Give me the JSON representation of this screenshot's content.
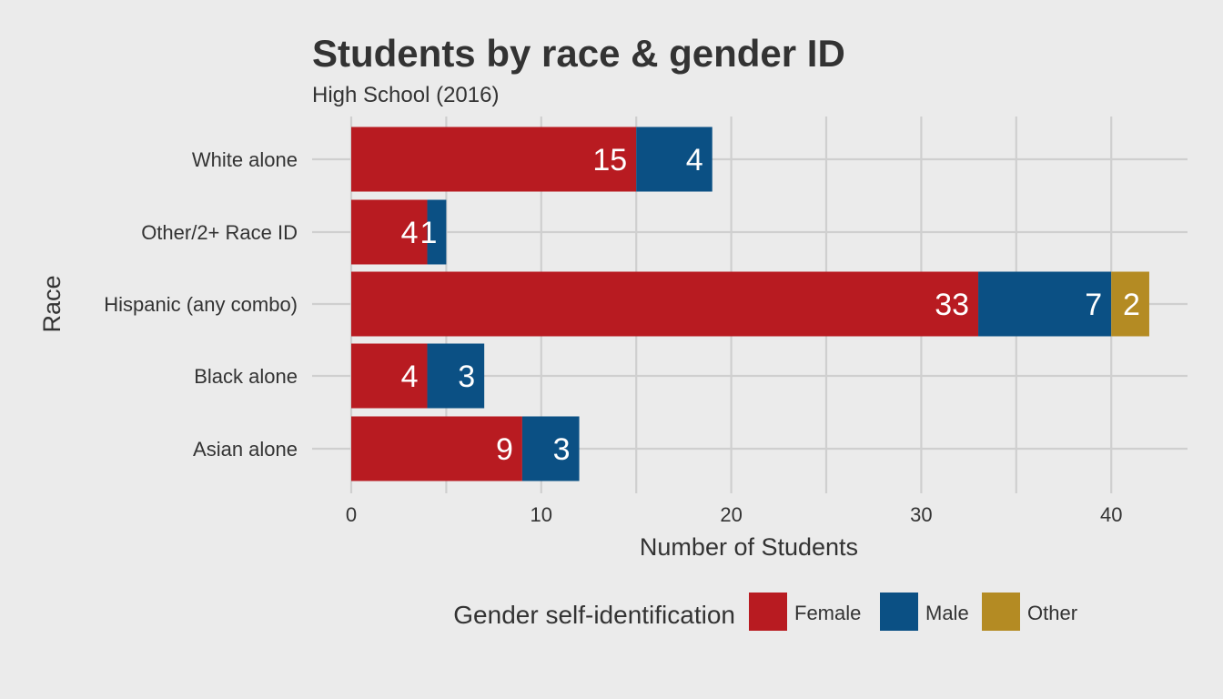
{
  "chart_data": {
    "type": "bar",
    "orientation": "horizontal",
    "stacked": true,
    "title": "Students by race & gender ID",
    "subtitle": "High School (2016)",
    "xlabel": "Number of Students",
    "ylabel": "Race",
    "xlim": [
      0,
      44
    ],
    "x_ticks": [
      "0",
      "10",
      "20",
      "30",
      "40"
    ],
    "grid": true,
    "categories": [
      "White alone",
      "Other/2+ Race ID",
      "Hispanic (any combo)",
      "Black alone",
      "Asian alone"
    ],
    "series": [
      {
        "name": "Female",
        "color": "#b81b21",
        "values": [
          15,
          4,
          33,
          4,
          9
        ],
        "labels": [
          "15",
          "4",
          "33",
          "4",
          "9"
        ]
      },
      {
        "name": "Male",
        "color": "#0b5084",
        "values": [
          4,
          1,
          7,
          3,
          3
        ],
        "labels": [
          "4",
          "1",
          "7",
          "3",
          "3"
        ]
      },
      {
        "name": "Other",
        "color": "#b48b23",
        "values": [
          0,
          0,
          2,
          0,
          0
        ],
        "labels": [
          "",
          "",
          "2",
          "",
          ""
        ]
      }
    ],
    "legend": {
      "title": "Gender self-identification",
      "position": "bottom"
    }
  }
}
